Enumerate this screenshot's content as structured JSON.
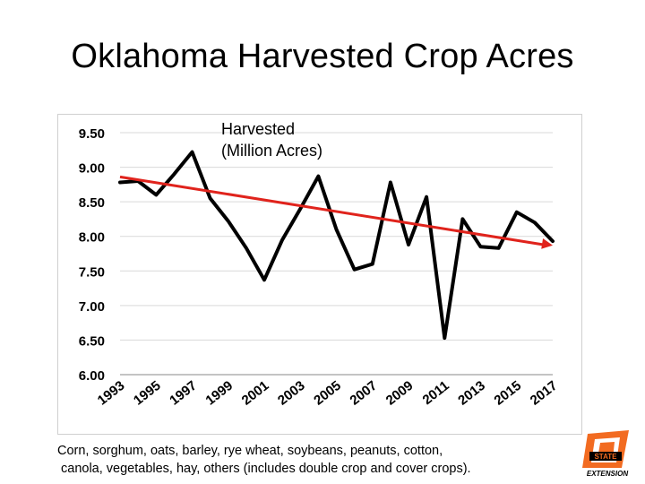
{
  "slide": {
    "title": "Oklahoma Harvested Crop Acres",
    "caption_line1": "Corn, sorghum, oats, barley, rye wheat, soybeans, peanuts, cotton,",
    "caption_line2": "canola, vegetables, hay, others (includes double crop and cover crops).",
    "logo_text_top": "STATE",
    "logo_text_bottom": "EXTENSION"
  },
  "chart_data": {
    "type": "line",
    "title": "Oklahoma Harvested Crop Acres",
    "annotation_line1": "Harvested",
    "annotation_line2": "(Million Acres)",
    "xlabel": "",
    "ylabel": "",
    "xlim": [
      1993,
      2017
    ],
    "ylim": [
      6.0,
      9.5
    ],
    "y_ticks": [
      "9.50",
      "9.00",
      "8.50",
      "8.00",
      "7.50",
      "7.00",
      "6.50",
      "6.00"
    ],
    "x_ticks": [
      "1993",
      "1995",
      "1997",
      "1999",
      "2001",
      "2003",
      "2005",
      "2007",
      "2009",
      "2011",
      "2013",
      "2015",
      "2017"
    ],
    "grid": true,
    "colors": {
      "series": "#000000",
      "trend": "#e0231c",
      "grid": "#d9d9d9",
      "axis": "#888888"
    },
    "series": [
      {
        "name": "Harvested (Million Acres)",
        "x": [
          1993,
          1994,
          1995,
          1996,
          1997,
          1998,
          1999,
          2000,
          2001,
          2002,
          2003,
          2004,
          2005,
          2006,
          2007,
          2008,
          2009,
          2010,
          2011,
          2012,
          2013,
          2014,
          2015,
          2016,
          2017
        ],
        "values": [
          8.78,
          8.8,
          8.6,
          8.9,
          9.22,
          8.55,
          8.22,
          7.83,
          7.37,
          7.95,
          8.4,
          8.87,
          8.1,
          7.52,
          7.6,
          8.78,
          7.88,
          8.57,
          6.53,
          8.25,
          7.85,
          7.83,
          8.35,
          8.2,
          7.93
        ]
      }
    ],
    "trendline": {
      "x": [
        1993,
        2017
      ],
      "values": [
        8.86,
        7.87
      ]
    }
  }
}
